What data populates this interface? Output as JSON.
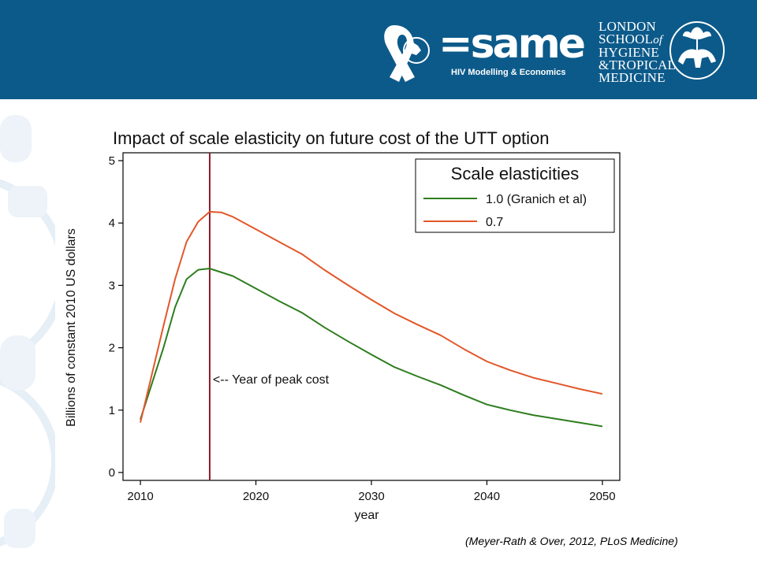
{
  "header": {
    "brand_name": "=same",
    "brand_subtitle": "HIV Modelling & Economics",
    "institution_line1": "LONDON",
    "institution_line2a": "SCHOOL",
    "institution_line2b": "of",
    "institution_line3": "HYGIENE",
    "institution_line4": "&TROPICAL",
    "institution_line5": "MEDICINE",
    "band_color": "#0c5a8a"
  },
  "citation": "(Meyer-Rath & Over, 2012, PLoS Medicine)",
  "chart_data": {
    "type": "line",
    "title": "Impact of scale elasticity on future cost of the UTT option",
    "xlabel": "year",
    "ylabel": "Billions of constant 2010 US dollars",
    "xlim": [
      2010,
      2050
    ],
    "ylim": [
      0,
      5
    ],
    "xticks": [
      2010,
      2020,
      2030,
      2040,
      2050
    ],
    "yticks": [
      0,
      1,
      2,
      3,
      4,
      5
    ],
    "grid": false,
    "legend": {
      "title": "Scale elasticities",
      "placement": "top-right"
    },
    "series": [
      {
        "name": "1.0 (Granich et al)",
        "color": "#2e7d1e",
        "x": [
          2010,
          2012,
          2013,
          2014,
          2015,
          2016,
          2018,
          2020,
          2022,
          2024,
          2026,
          2028,
          2030,
          2032,
          2034,
          2036,
          2038,
          2040,
          2042,
          2044,
          2046,
          2048,
          2050
        ],
        "y": [
          0.85,
          2.0,
          2.65,
          3.1,
          3.25,
          3.27,
          3.15,
          2.95,
          2.75,
          2.56,
          2.32,
          2.1,
          1.89,
          1.69,
          1.54,
          1.4,
          1.24,
          1.09,
          1.0,
          0.92,
          0.86,
          0.8,
          0.74
        ]
      },
      {
        "name": "0.7",
        "color": "#e2572a",
        "x": [
          2010,
          2012,
          2013,
          2014,
          2015,
          2016,
          2017,
          2018,
          2020,
          2022,
          2024,
          2026,
          2028,
          2030,
          2032,
          2034,
          2036,
          2038,
          2040,
          2042,
          2044,
          2046,
          2048,
          2050
        ],
        "y": [
          0.8,
          2.35,
          3.1,
          3.7,
          4.02,
          4.18,
          4.17,
          4.1,
          3.9,
          3.7,
          3.5,
          3.24,
          3.0,
          2.77,
          2.55,
          2.37,
          2.2,
          1.98,
          1.78,
          1.64,
          1.52,
          1.43,
          1.34,
          1.26
        ]
      }
    ],
    "annotation": {
      "x": 2016,
      "label": "<-- Year of peak cost",
      "label_y": 1.5,
      "color": "#8b1a2b"
    }
  }
}
